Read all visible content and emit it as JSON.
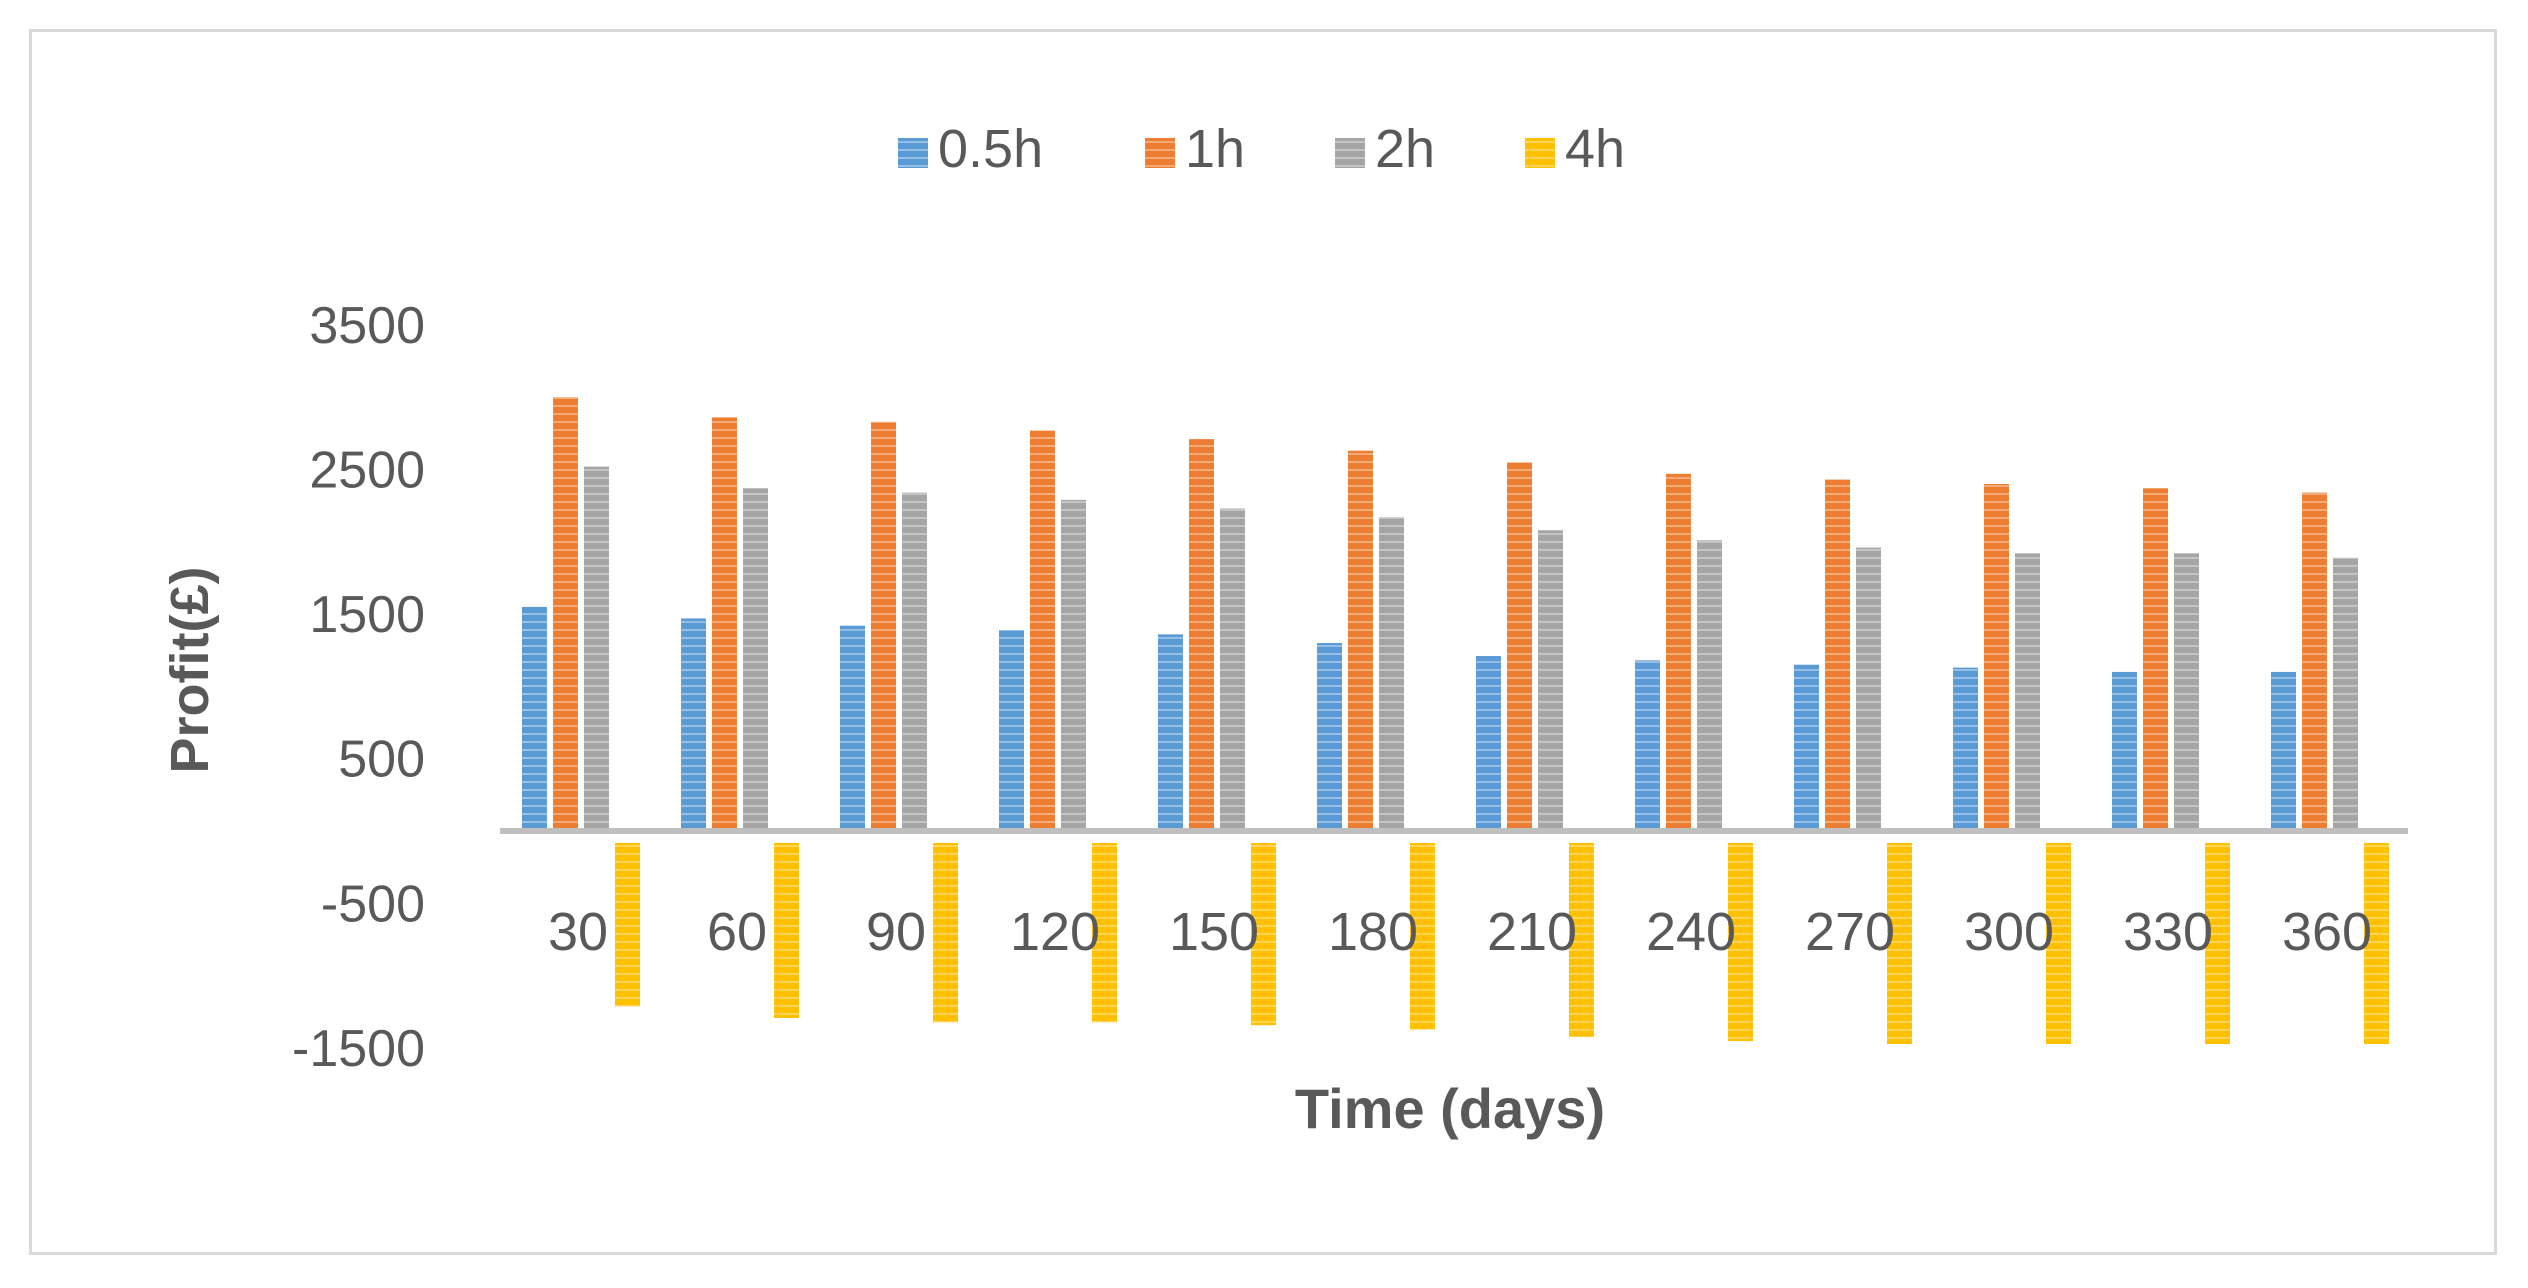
{
  "chart_data": {
    "type": "bar",
    "title": "",
    "xlabel": "Time (days)",
    "ylabel": "Profit(£)",
    "categories": [
      "30",
      "60",
      "90",
      "120",
      "150",
      "180",
      "210",
      "240",
      "270",
      "300",
      "330",
      "360"
    ],
    "series": [
      {
        "name": "0.5h",
        "color": "#5b9bd5",
        "values": [
          1550,
          1470,
          1420,
          1390,
          1360,
          1300,
          1210,
          1180,
          1150,
          1130,
          1100,
          1100
        ]
      },
      {
        "name": "1h",
        "color": "#ed7d31",
        "values": [
          3000,
          2860,
          2830,
          2770,
          2710,
          2630,
          2550,
          2470,
          2430,
          2400,
          2370,
          2340
        ]
      },
      {
        "name": "2h",
        "color": "#a5a5a5",
        "values": [
          2520,
          2370,
          2340,
          2290,
          2230,
          2170,
          2080,
          2010,
          1960,
          1920,
          1920,
          1890
        ]
      },
      {
        "name": "4h",
        "color": "#ffc000",
        "values": [
          -1130,
          -1210,
          -1240,
          -1240,
          -1260,
          -1290,
          -1340,
          -1370,
          -1390,
          -1390,
          -1390,
          -1390
        ]
      }
    ],
    "yticks": [
      3500,
      2500,
      1500,
      500,
      -500,
      -1500
    ],
    "ylim": [
      -1500,
      3500
    ],
    "grid": false,
    "legend": "top"
  }
}
